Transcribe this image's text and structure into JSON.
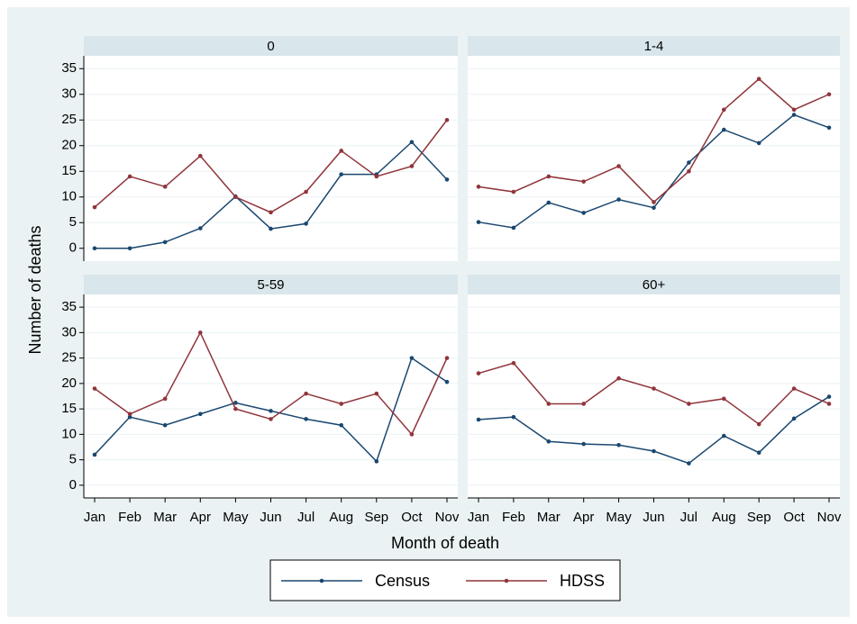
{
  "chart_data": {
    "type": "line",
    "ylabel": "Number of deaths",
    "xlabel": "Month of death",
    "categories": [
      "Jan",
      "Feb",
      "Mar",
      "Apr",
      "May",
      "Jun",
      "Jul",
      "Aug",
      "Sep",
      "Oct",
      "Nov"
    ],
    "ylim": [
      -2.5,
      37.5
    ],
    "yticks": [
      0,
      5,
      10,
      15,
      20,
      25,
      30,
      35
    ],
    "grid": true,
    "series": [
      {
        "name": "Census",
        "color": "#1a476f"
      },
      {
        "name": "HDSS",
        "color": "#90353b"
      }
    ],
    "panels": [
      {
        "title": "0",
        "series": [
          {
            "values": [
              0,
              0,
              1.2,
              3.9,
              10.1,
              3.8,
              4.8,
              14.4,
              14.4,
              20.7,
              13.4
            ]
          },
          {
            "values": [
              8,
              14,
              12,
              18,
              10,
              7,
              11,
              19,
              14,
              16,
              25
            ]
          }
        ]
      },
      {
        "title": "1-4",
        "series": [
          {
            "values": [
              5.1,
              4.0,
              8.9,
              6.9,
              9.5,
              7.9,
              16.7,
              23.1,
              20.5,
              26,
              23.5
            ]
          },
          {
            "values": [
              12,
              11,
              14,
              13,
              16,
              9,
              15,
              27,
              33,
              27,
              30
            ]
          }
        ]
      },
      {
        "title": "5-59",
        "series": [
          {
            "values": [
              6,
              13.4,
              11.8,
              14,
              16.2,
              14.6,
              13,
              11.8,
              4.7,
              25,
              20.3
            ]
          },
          {
            "values": [
              19,
              14,
              17,
              30,
              15,
              13,
              18,
              16,
              18,
              10,
              25
            ]
          }
        ]
      },
      {
        "title": "60+",
        "series": [
          {
            "values": [
              12.9,
              13.4,
              8.6,
              8.1,
              7.9,
              6.7,
              4.3,
              9.7,
              6.4,
              13.1,
              17.4
            ]
          },
          {
            "values": [
              22,
              24,
              16,
              16,
              21,
              19,
              16,
              17,
              12,
              19,
              16
            ]
          }
        ]
      }
    ]
  }
}
